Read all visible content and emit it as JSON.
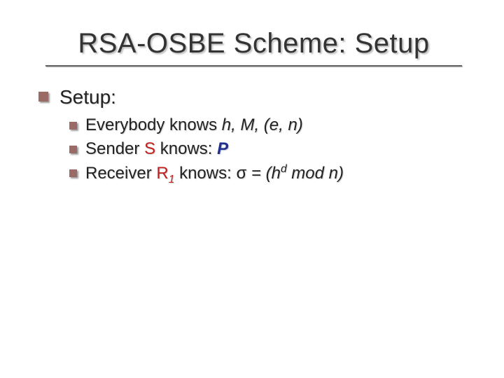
{
  "slide": {
    "title": "RSA-OSBE Scheme: Setup",
    "title_color": "#333333",
    "title_fontsize": 40,
    "rule_color": "#666666",
    "background": "#ffffff",
    "bullet_color": "#9a6a66",
    "bullet_shadow": "#999999",
    "text_shadow": "#cccccc",
    "body_fontsize_l1": 28,
    "body_fontsize_l2": 24,
    "level1": {
      "text": "Setup:"
    },
    "level2": [
      {
        "prefix": "Everybody knows ",
        "emph": "h, M, (e, n)",
        "color_pre": "#222222",
        "color_emph": "#222222"
      },
      {
        "prefix": "Sender ",
        "who": "S",
        "who_color": "#c02020",
        "mid": " knows: ",
        "val": "P",
        "val_color": "#203090",
        "val_bold": true,
        "val_italic": true
      },
      {
        "prefix": "Receiver ",
        "who": "R",
        "who_sub": "1",
        "who_color": "#c02020",
        "mid": " knows: ",
        "sigma": "σ",
        "eq": " = (h",
        "sup": "d",
        "tail": " mod n)"
      }
    ]
  }
}
